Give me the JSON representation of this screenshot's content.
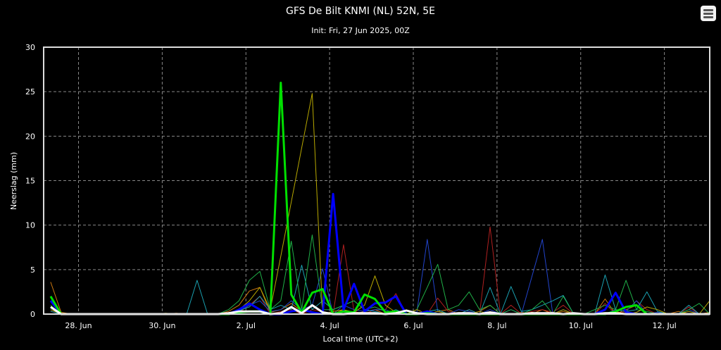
{
  "menu_icon": "hamburger-menu-icon",
  "chart_data": {
    "type": "line",
    "title": "GFS De Bilt KNMI (NL) 52N, 5E",
    "subtitle": "Init: Fri, 27 Jun 2025, 00Z",
    "xlabel": "Local time (UTC+2)",
    "ylabel": "Neerslag (mm)",
    "ylim": [
      0,
      30
    ],
    "yticks": [
      0,
      5,
      10,
      15,
      20,
      25,
      30
    ],
    "xlim": [
      "2025-06-27T04:00",
      "2025-07-13T02:00"
    ],
    "xticks": [
      {
        "at": "2025-06-28T00:00",
        "label": "28. Jun"
      },
      {
        "at": "2025-06-30T00:00",
        "label": "30. Jun"
      },
      {
        "at": "2025-07-02T00:00",
        "label": "2. Jul"
      },
      {
        "at": "2025-07-04T00:00",
        "label": "4. Jul"
      },
      {
        "at": "2025-07-06T00:00",
        "label": "6. Jul"
      },
      {
        "at": "2025-07-08T00:00",
        "label": "8. Jul"
      },
      {
        "at": "2025-07-10T00:00",
        "label": "10. Jul"
      },
      {
        "at": "2025-07-12T00:00",
        "label": "12. Jul"
      }
    ],
    "grid": true,
    "background": "#000000",
    "x": [
      "2025-06-27T08:00",
      "2025-06-27T14:00",
      "2025-06-27T20:00",
      "2025-06-28T02:00",
      "2025-06-28T08:00",
      "2025-06-28T14:00",
      "2025-06-28T20:00",
      "2025-06-29T02:00",
      "2025-06-29T08:00",
      "2025-06-29T14:00",
      "2025-06-29T20:00",
      "2025-06-30T02:00",
      "2025-06-30T08:00",
      "2025-06-30T14:00",
      "2025-06-30T20:00",
      "2025-07-01T02:00",
      "2025-07-01T08:00",
      "2025-07-01T14:00",
      "2025-07-01T20:00",
      "2025-07-02T02:00",
      "2025-07-02T08:00",
      "2025-07-02T14:00",
      "2025-07-02T20:00",
      "2025-07-03T02:00",
      "2025-07-03T08:00",
      "2025-07-03T14:00",
      "2025-07-03T20:00",
      "2025-07-04T02:00",
      "2025-07-04T08:00",
      "2025-07-04T14:00",
      "2025-07-04T20:00",
      "2025-07-05T02:00",
      "2025-07-05T08:00",
      "2025-07-05T14:00",
      "2025-07-05T20:00",
      "2025-07-06T02:00",
      "2025-07-06T08:00",
      "2025-07-06T14:00",
      "2025-07-06T20:00",
      "2025-07-07T02:00",
      "2025-07-07T08:00",
      "2025-07-07T14:00",
      "2025-07-07T20:00",
      "2025-07-08T02:00",
      "2025-07-08T08:00",
      "2025-07-08T14:00",
      "2025-07-08T20:00",
      "2025-07-09T02:00",
      "2025-07-09T08:00",
      "2025-07-09T14:00",
      "2025-07-09T20:00",
      "2025-07-10T02:00",
      "2025-07-10T08:00",
      "2025-07-10T14:00",
      "2025-07-10T20:00",
      "2025-07-11T02:00",
      "2025-07-11T08:00",
      "2025-07-11T14:00",
      "2025-07-11T20:00",
      "2025-07-12T02:00",
      "2025-07-12T08:00",
      "2025-07-12T14:00",
      "2025-07-12T20:00",
      "2025-07-13T02:00"
    ],
    "series": [
      {
        "color": "#d07a10",
        "thick": false,
        "values": [
          3.6,
          0.2,
          0,
          0,
          0,
          0,
          0,
          0,
          0,
          0,
          0,
          0,
          0.1,
          0,
          0,
          0,
          0,
          0.3,
          1.0,
          2.6,
          3.0,
          0.2,
          0.5,
          1.2,
          0.3,
          1.0,
          0.2,
          0,
          0.5,
          0,
          0.3,
          0.5,
          0,
          0.3,
          0,
          0,
          0,
          0.3,
          0.5,
          0,
          0,
          0.3,
          1.0,
          0,
          0,
          0.2,
          0,
          0.5,
          0,
          0.3,
          0,
          0,
          0,
          1.7,
          0,
          0.5,
          1.0,
          0,
          0,
          0,
          0.3,
          0,
          0,
          0.2
        ]
      },
      {
        "color": "#b02020",
        "thick": false,
        "values": [
          0.3,
          0,
          0,
          0,
          0,
          0,
          0,
          0,
          0,
          0,
          0,
          0,
          0,
          0,
          0,
          0,
          0,
          0,
          0.2,
          1.0,
          2.0,
          0,
          0.3,
          0.5,
          0,
          0.5,
          0.3,
          0,
          7.8,
          0.3,
          0,
          0.5,
          0.5,
          2.3,
          0,
          0,
          0,
          1.8,
          0.3,
          0,
          0.5,
          0,
          9.8,
          0,
          1.0,
          0,
          0.3,
          0.5,
          0.2,
          1.0,
          0,
          0,
          0,
          1.2,
          0,
          0.3,
          1.5,
          0.5,
          0,
          0,
          0,
          0.8,
          0,
          0
        ]
      },
      {
        "color": "#2244cc",
        "thick": false,
        "values": [
          0.5,
          0,
          0,
          0,
          0,
          0,
          0,
          0,
          0,
          0,
          0,
          0,
          0,
          0,
          0,
          0,
          0,
          0,
          0.3,
          1.0,
          1.5,
          0.3,
          0.5,
          1.5,
          0.5,
          1.0,
          5.1,
          0,
          1.0,
          0.5,
          0.3,
          0.5,
          0.5,
          0,
          0,
          0.2,
          8.4,
          0.3,
          0,
          0.5,
          0.3,
          0,
          0.5,
          0,
          0.5,
          0,
          4.2,
          8.4,
          0,
          0.5,
          0,
          0,
          0,
          0,
          0.5,
          0.3,
          1.5,
          0,
          0.2,
          0,
          0,
          0.5,
          0,
          0
        ]
      },
      {
        "color": "#1aa0b0",
        "thick": false,
        "values": [
          0.3,
          0,
          0,
          0,
          0,
          0,
          0,
          0,
          0,
          0,
          0,
          0,
          0,
          0,
          3.8,
          0,
          0,
          0,
          0.4,
          0.8,
          2.0,
          0.5,
          1.0,
          0.5,
          5.5,
          0.5,
          1.5,
          0.5,
          1.0,
          1.5,
          0.5,
          0.3,
          0,
          0.5,
          0,
          0,
          0.3,
          0.5,
          0,
          0,
          0.5,
          0,
          3.0,
          0,
          3.1,
          0.3,
          0.5,
          1.0,
          1.5,
          2.1,
          0,
          0,
          0,
          4.4,
          0.5,
          0.3,
          0.5,
          2.5,
          0.3,
          0,
          0,
          1.0,
          0,
          0
        ]
      },
      {
        "color": "#20b048",
        "thick": false,
        "values": [
          1.0,
          0,
          0,
          0,
          0,
          0,
          0,
          0,
          0,
          0,
          0,
          0,
          0,
          0,
          0,
          0,
          0,
          0.5,
          1.5,
          3.8,
          4.8,
          0.5,
          1.5,
          8.2,
          0.5,
          8.9,
          0.5,
          0.5,
          1.0,
          1.5,
          0.5,
          0.8,
          0.3,
          0,
          0,
          0.5,
          3.0,
          5.6,
          0.5,
          1.0,
          2.5,
          0.5,
          1.0,
          0,
          0.5,
          0,
          0.5,
          1.5,
          0,
          2.0,
          0,
          0,
          0.5,
          1.0,
          0.5,
          3.8,
          0.5,
          0.3,
          0,
          0,
          0,
          0.5,
          1.2,
          0
        ]
      },
      {
        "color": "#b8a800",
        "thick": false,
        "values": [
          0.5,
          0,
          0,
          0,
          0,
          0,
          0,
          0,
          0,
          0,
          0,
          0.1,
          0,
          0,
          0,
          0,
          0,
          0,
          0.5,
          1.5,
          3.0,
          0.5,
          6.5,
          12.6,
          18.7,
          24.8,
          0,
          0.3,
          0.5,
          0.2,
          1.0,
          4.3,
          1.0,
          0.2,
          0,
          0.5,
          0,
          0.3,
          0,
          0,
          0,
          0.3,
          0,
          0,
          0,
          0,
          0.2,
          0,
          0,
          0.5,
          0,
          0,
          0,
          0,
          0.3,
          0,
          0.2,
          0.8,
          0.5,
          0,
          0,
          0.3,
          0,
          1.5
        ]
      },
      {
        "color": "#0000ff",
        "thick": true,
        "values": [
          1.5,
          0,
          0,
          0,
          0,
          0,
          0,
          0,
          0,
          0,
          0,
          0,
          0,
          0,
          0,
          0,
          0,
          0,
          0.5,
          1.2,
          0.5,
          0,
          0,
          0.3,
          0.5,
          0.2,
          0,
          13.5,
          0.5,
          3.4,
          0.3,
          1.2,
          1.3,
          2.0,
          0,
          0,
          0.3,
          0,
          0,
          0,
          0,
          0,
          0,
          0,
          0,
          0,
          0,
          0,
          0,
          0,
          0,
          0,
          0,
          0.5,
          2.4,
          0.2,
          0,
          0,
          0,
          0,
          0,
          0,
          0,
          0
        ]
      },
      {
        "color": "#00e000",
        "thick": true,
        "values": [
          2.0,
          0,
          0,
          0,
          0,
          0,
          0,
          0,
          0,
          0,
          0,
          0,
          0,
          0,
          0,
          0,
          0,
          0,
          0.2,
          0.3,
          0.3,
          0,
          26,
          2.2,
          0.2,
          2.4,
          2.8,
          0,
          0.3,
          0.2,
          2.2,
          1.7,
          0.2,
          0.3,
          0,
          0,
          0.1,
          0,
          0,
          0,
          0,
          0,
          0,
          0,
          0,
          0,
          0,
          0,
          0,
          0,
          0,
          0,
          0,
          0,
          0.3,
          0.8,
          1.0,
          0,
          0,
          0,
          0,
          0,
          0,
          0
        ]
      },
      {
        "color": "#ffffff",
        "thick": true,
        "values": [
          0.8,
          0,
          0,
          0,
          0,
          0,
          0,
          0,
          0,
          0,
          0,
          0,
          0,
          0,
          0,
          0,
          0,
          0.1,
          0.3,
          0.3,
          0.3,
          0,
          0.1,
          0.8,
          0.1,
          1.0,
          0.2,
          0,
          0,
          0.1,
          0.1,
          0.1,
          0,
          0.1,
          0.4,
          0.1,
          0,
          0,
          0,
          0.1,
          0.1,
          0,
          0.2,
          0,
          0,
          0,
          0.1,
          0.1,
          0.1,
          0,
          0.1,
          0,
          0,
          0.1,
          0.1,
          0,
          0,
          0,
          0,
          0,
          0,
          0,
          0,
          0
        ]
      }
    ]
  }
}
